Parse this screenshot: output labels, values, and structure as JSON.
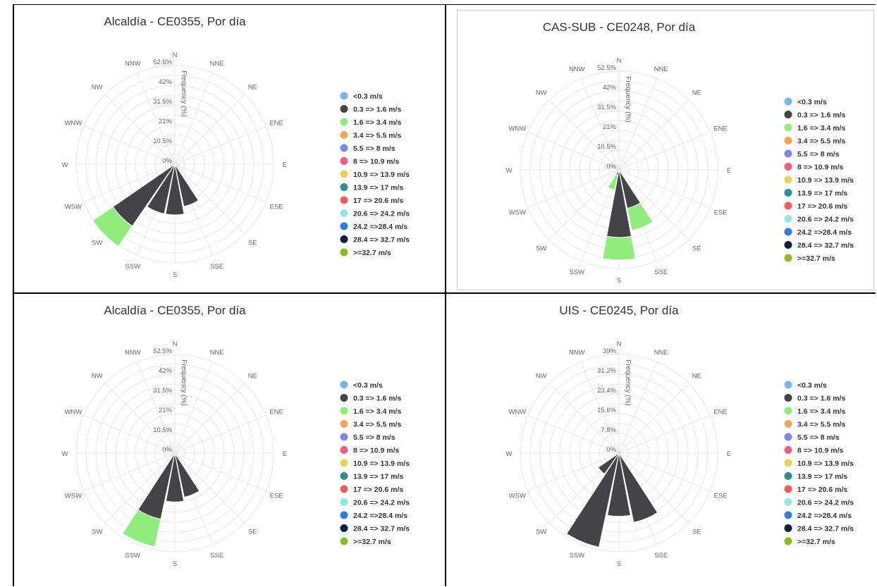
{
  "legend_bins": [
    {
      "label": "<0.3 m/s",
      "color": "#7cb5ec"
    },
    {
      "label": "0.3 => 1.6 m/s",
      "color": "#434348"
    },
    {
      "label": "1.6 => 3.4 m/s",
      "color": "#90ed7d"
    },
    {
      "label": "3.4 => 5.5 m/s",
      "color": "#f7a35c"
    },
    {
      "label": "5.5 => 8 m/s",
      "color": "#8085e9"
    },
    {
      "label": "8 => 10.9 m/s",
      "color": "#f15c80"
    },
    {
      "label": "10.9 => 13.9 m/s",
      "color": "#e4d354"
    },
    {
      "label": "13.9 => 17 m/s",
      "color": "#2b908f"
    },
    {
      "label": "17 => 20.6 m/s",
      "color": "#f45b5b"
    },
    {
      "label": "20.6 => 24.2 m/s",
      "color": "#91e8e1"
    },
    {
      "label": "24.2 =>28.4 m/s",
      "color": "#2f7ed8"
    },
    {
      "label": "28.4 => 32.7 m/s",
      "color": "#0d233a"
    },
    {
      "label": ">=32.7 m/s",
      "color": "#8bbc21"
    }
  ],
  "directions": [
    "N",
    "NNE",
    "NE",
    "ENE",
    "E",
    "ESE",
    "SE",
    "SSE",
    "S",
    "SSW",
    "SW",
    "WSW",
    "W",
    "WNW",
    "NW",
    "NNW"
  ],
  "chart_data": [
    {
      "type": "windrose",
      "title": "Alcaldía - CE0355, Por día",
      "radial_label": "Frequency (%)",
      "radial_ticks": [
        "0%",
        "10.5%",
        "21%",
        "31.5%",
        "42%",
        "52.5%"
      ],
      "rmax": 52.5,
      "stacks": {
        "SSE": [
          0,
          23,
          0
        ],
        "S": [
          0,
          27,
          0
        ],
        "SSW": [
          0,
          27,
          0
        ],
        "SW": [
          0,
          40,
          13
        ]
      }
    },
    {
      "type": "windrose",
      "title": "CAS-SUB - CE0248, Por día",
      "radial_label": "Frequency (%)",
      "radial_ticks": [
        "0%",
        "10.5%",
        "21%",
        "31.5%",
        "42%",
        "52.5%"
      ],
      "rmax": 52.5,
      "stacks": {
        "SSE": [
          0,
          21,
          12
        ],
        "S": [
          0,
          36,
          12
        ],
        "SSW": [
          0,
          3,
          8
        ]
      }
    },
    {
      "type": "windrose",
      "title": "Alcaldía - CE0355, Por día",
      "radial_label": "Frequency (%)",
      "radial_ticks": [
        "0%",
        "10.5%",
        "21%",
        "31.5%",
        "42%",
        "52.5%"
      ],
      "rmax": 52.5,
      "stacks": {
        "SSE": [
          0,
          24,
          0
        ],
        "S": [
          0,
          26,
          0
        ],
        "SSW": [
          0,
          36,
          15
        ]
      }
    },
    {
      "type": "windrose",
      "title": "UIS - CE0245, Por día",
      "radial_label": "Frequency (%)",
      "radial_ticks": [
        "0%",
        "7.8%",
        "15.6%",
        "23.4%",
        "31.2%",
        "39%"
      ],
      "rmax": 39,
      "stacks": {
        "SSE": [
          0,
          28,
          0
        ],
        "S": [
          0,
          25,
          0
        ],
        "SSW": [
          0,
          38,
          0
        ],
        "SW": [
          0,
          10,
          0
        ]
      }
    }
  ]
}
